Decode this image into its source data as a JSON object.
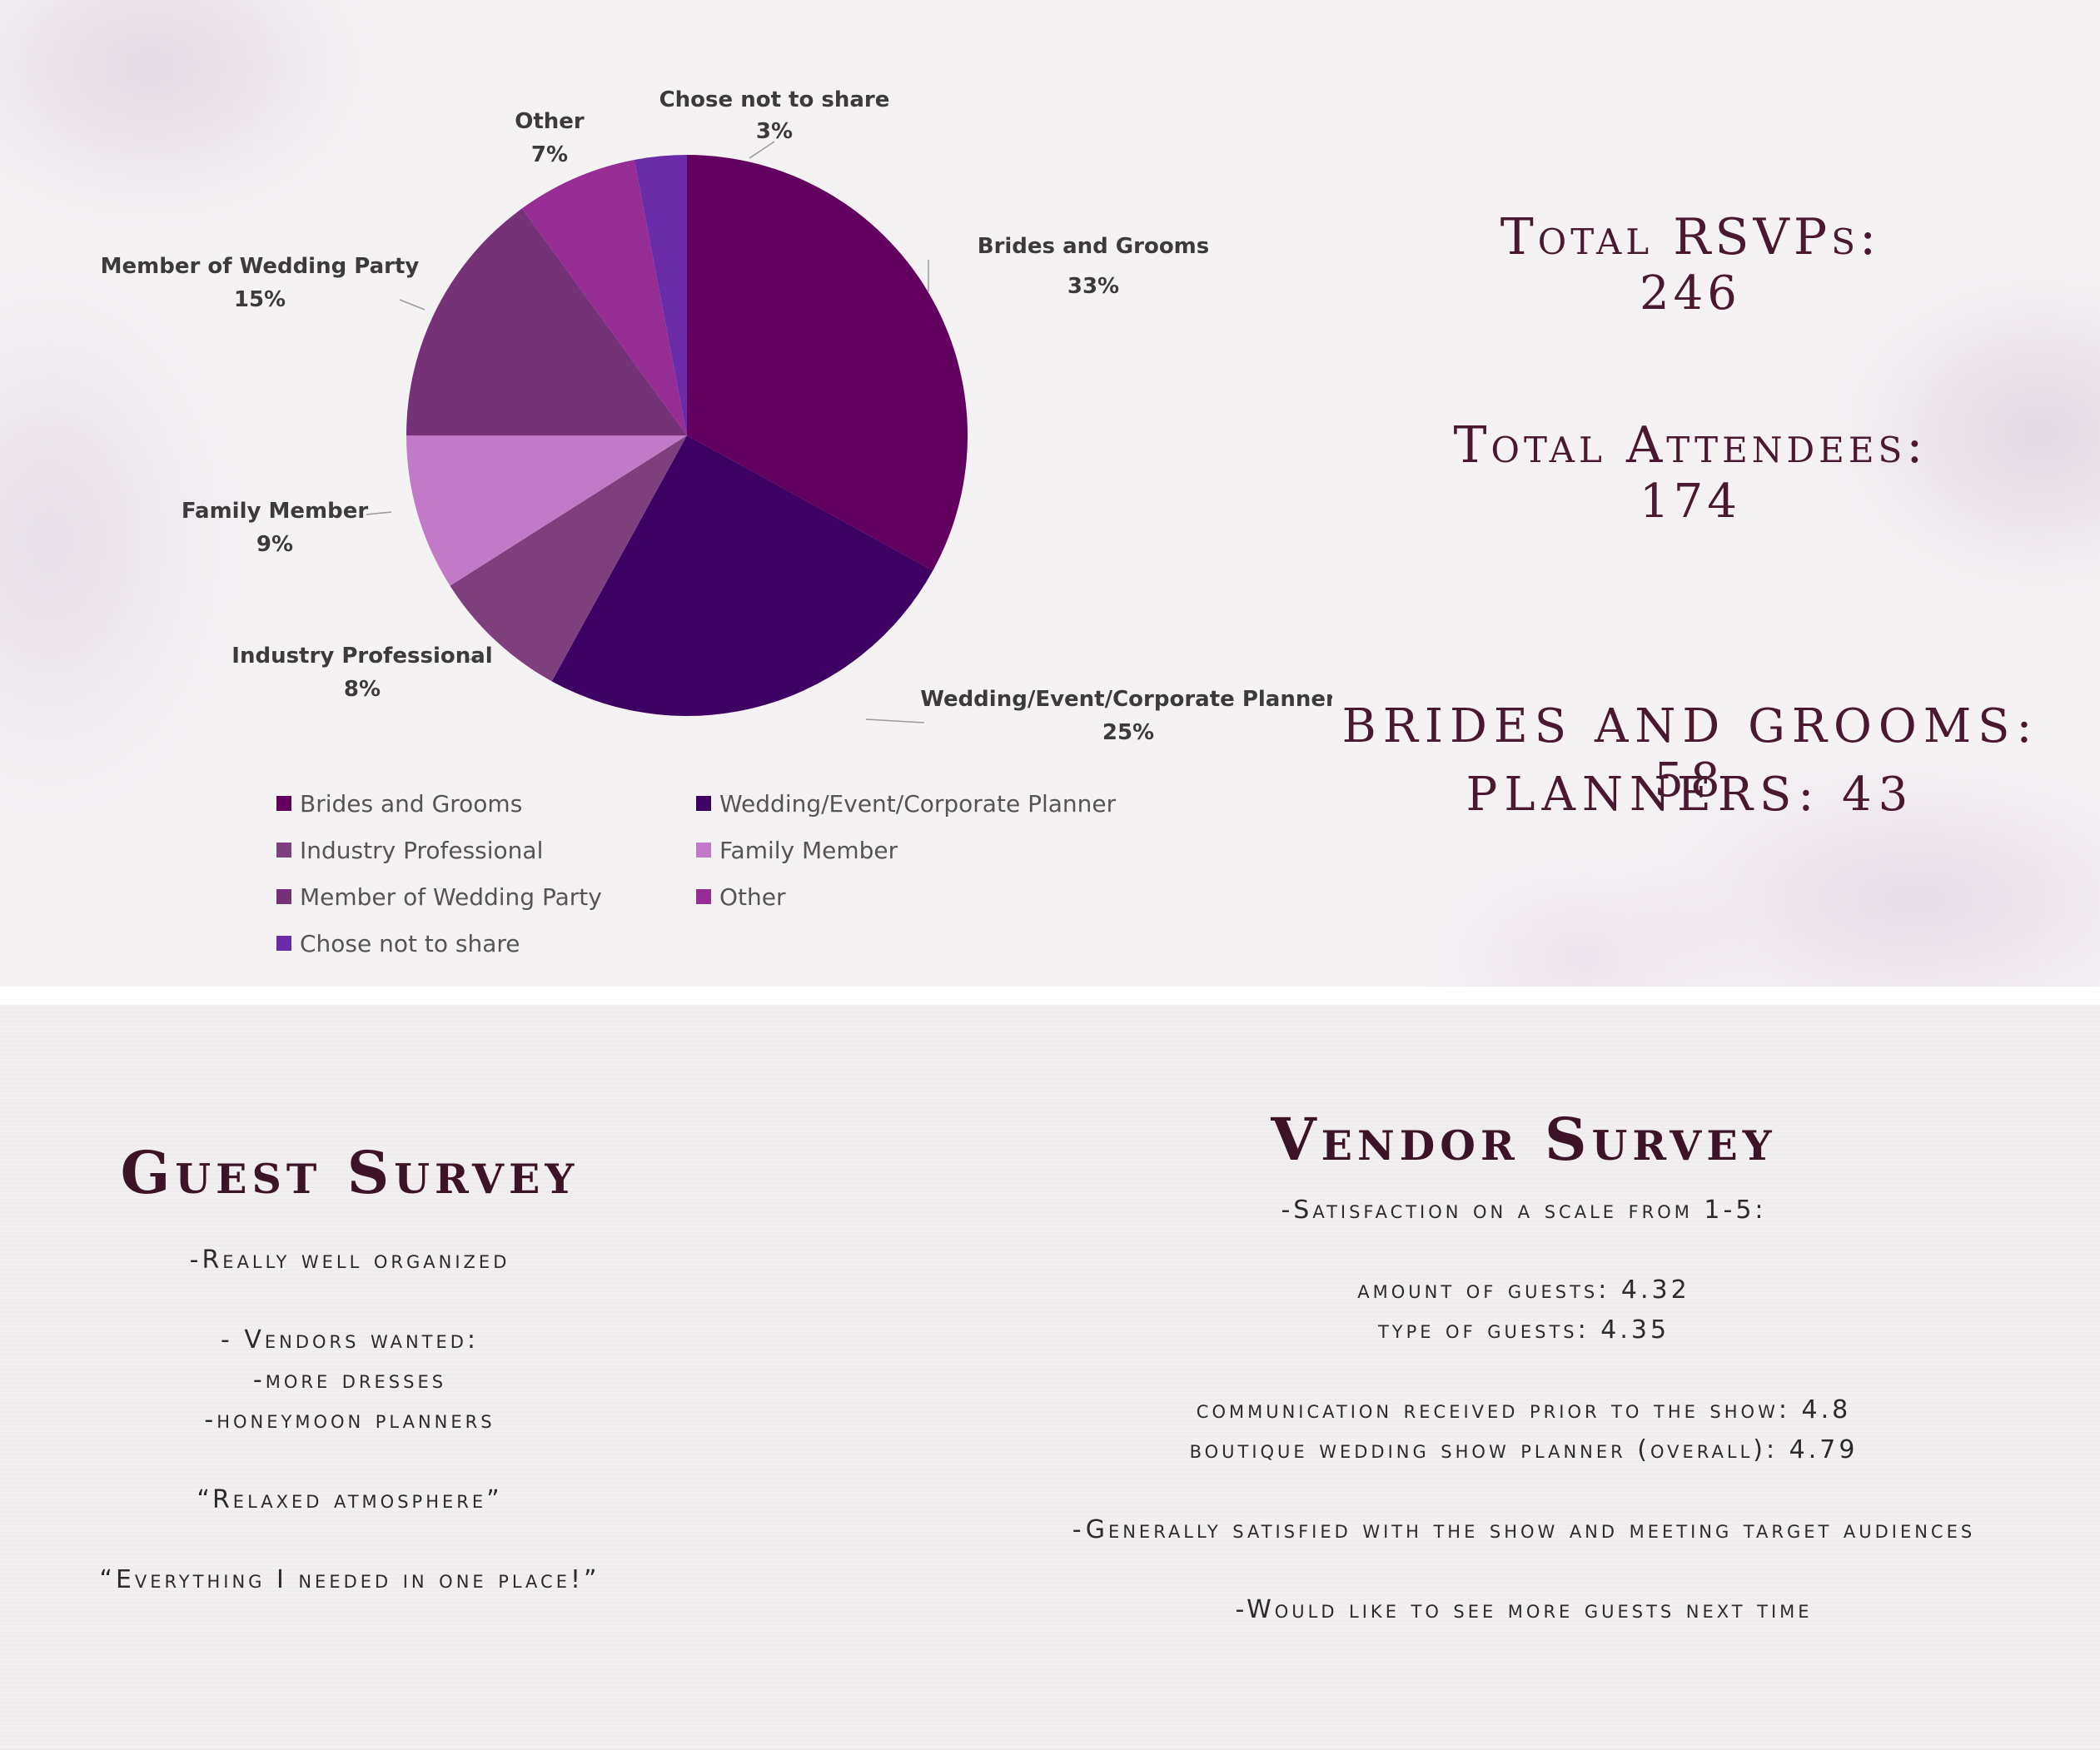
{
  "chart_data": {
    "type": "pie",
    "slices": [
      {
        "label": "Brides and Grooms",
        "value": 33,
        "value_label": "33%",
        "color": "#620060"
      },
      {
        "label": "Wedding/Event/Corporate Planner",
        "value": 25,
        "value_label": "25%",
        "color": "#3e0063"
      },
      {
        "label": "Industry Professional",
        "value": 8,
        "value_label": "8%",
        "color": "#7f3f7f"
      },
      {
        "label": "Family Member",
        "value": 9,
        "value_label": "9%",
        "color": "#c27ac8"
      },
      {
        "label": "Member of Wedding Party",
        "value": 15,
        "value_label": "15%",
        "color": "#763279"
      },
      {
        "label": "Other",
        "value": 7,
        "value_label": "7%",
        "color": "#962e96"
      },
      {
        "label": "Chose not to share",
        "value": 3,
        "value_label": "3%",
        "color": "#6a2ba8"
      }
    ],
    "legend": {
      "placement": "bottom",
      "entries": [
        "Brides and Grooms",
        "Wedding/Event/Corporate Planner",
        "Industry Professional",
        "Family Member",
        "Member of Wedding Party",
        "Other",
        "Chose not to share"
      ]
    }
  },
  "stats": {
    "total_rsvps_label": "Total RSVPs:",
    "total_rsvps_value": "246",
    "total_attendees_label": "Total Attendees:",
    "total_attendees_value": "174",
    "brides_grooms_line": "BRIDES AND GROOMS: 58",
    "planners_line": "PLANNERS: 43"
  },
  "guest_survey": {
    "title": "Guest Survey",
    "line_1": "-Really well organized",
    "line_2": "- Vendors wanted:",
    "line_3": "-more dresses",
    "line_4": "-honeymoon planners",
    "line_5": "“Relaxed atmosphere”",
    "line_6": "“Everything I needed in one place!”"
  },
  "vendor_survey": {
    "title": "Vendor Survey",
    "line_1": "-Satisfaction on a scale from 1-5:",
    "line_2": "amount of guests: 4.32",
    "line_3": "type of guests: 4.35",
    "line_4": "communication received prior to the show: 4.8",
    "line_5": "boutique wedding show planner (overall): 4.79",
    "line_6": "-Generally satisfied with the show and meeting target audiences",
    "line_7": "-Would like to see more guests next time"
  }
}
